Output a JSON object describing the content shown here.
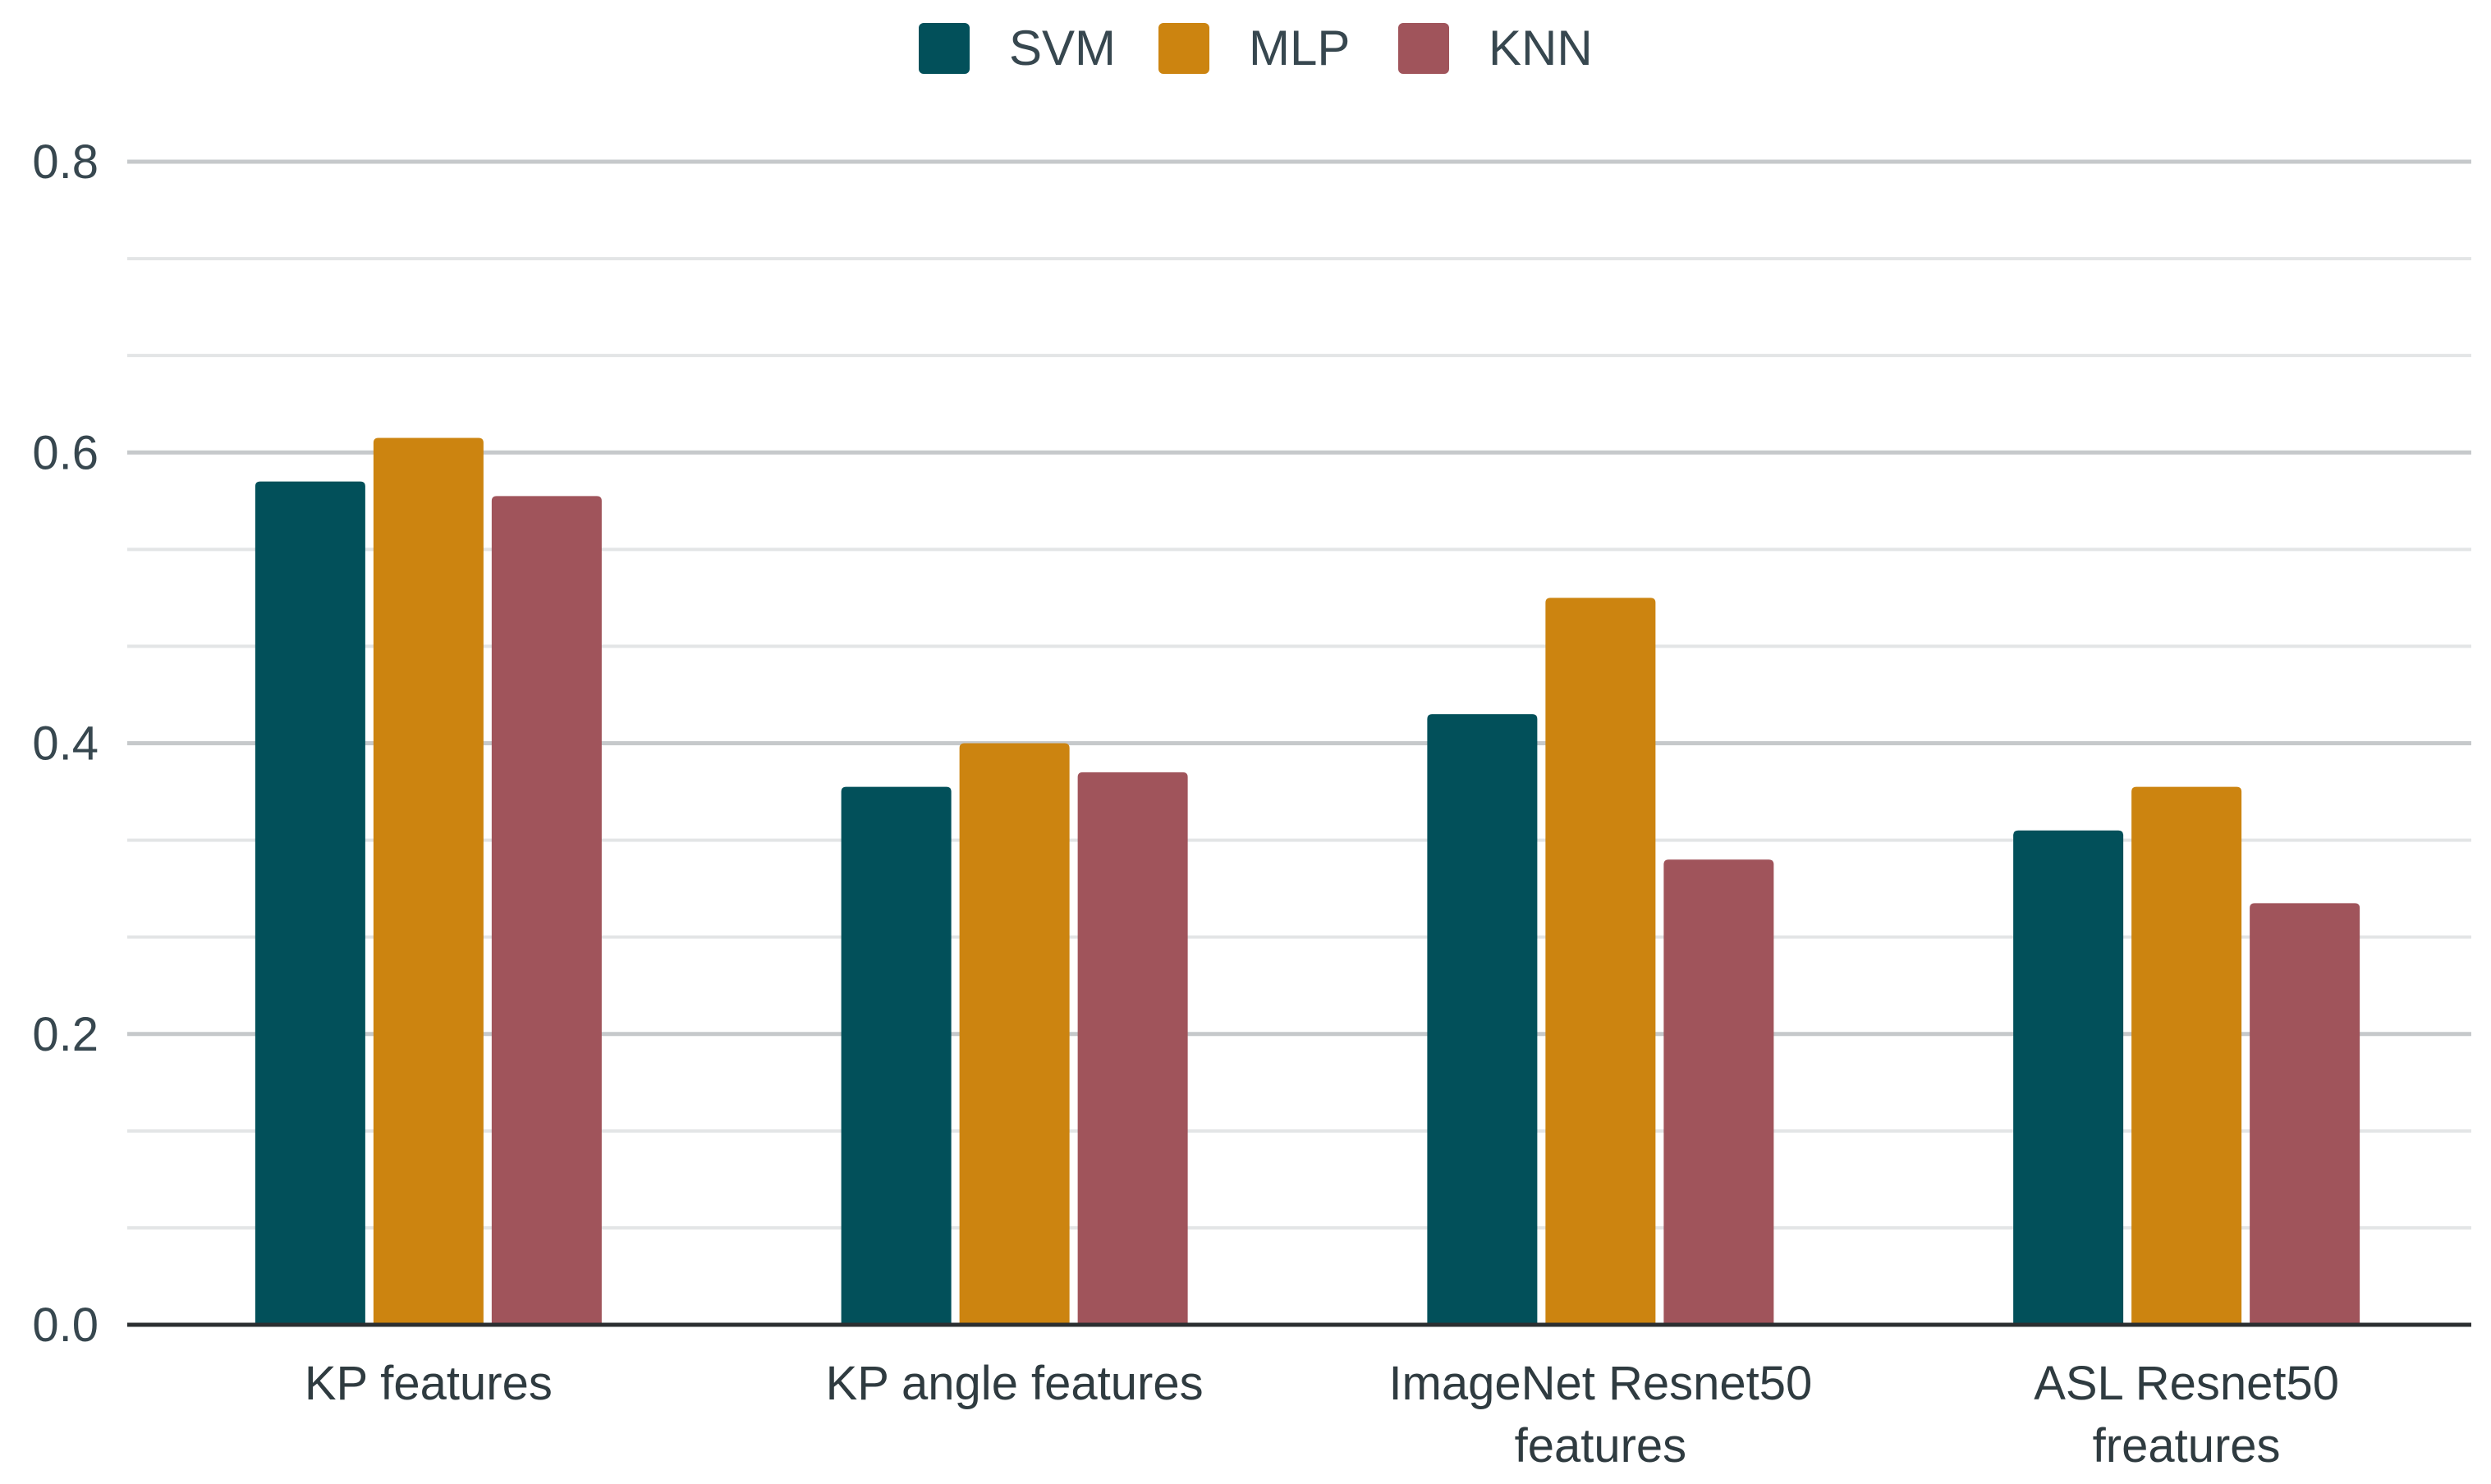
{
  "chart_data": {
    "type": "bar",
    "title": "",
    "xlabel": "",
    "ylabel": "",
    "ylim": [
      0,
      0.8
    ],
    "yticks": [
      "0.0",
      "0.2",
      "0.4",
      "0.6",
      "0.8"
    ],
    "grid": true,
    "legend_position": "top-center",
    "categories": [
      [
        "KP features"
      ],
      [
        "KP angle features"
      ],
      [
        "ImageNet Resnet50",
        "features"
      ],
      [
        "ASL Resnet50",
        "freatures"
      ]
    ],
    "series": [
      {
        "name": "SVM",
        "color": "#02505a",
        "values": [
          0.58,
          0.37,
          0.42,
          0.34
        ]
      },
      {
        "name": "MLP",
        "color": "#cc8410",
        "values": [
          0.61,
          0.4,
          0.5,
          0.37
        ]
      },
      {
        "name": "KNN",
        "color": "#a0545b",
        "values": [
          0.57,
          0.38,
          0.32,
          0.29
        ]
      }
    ]
  }
}
